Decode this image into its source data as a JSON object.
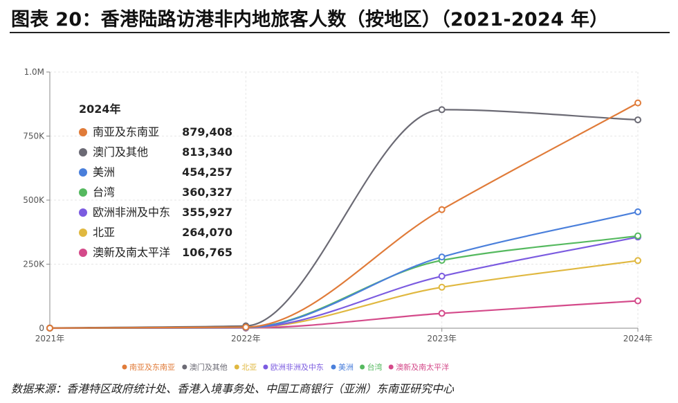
{
  "title": "图表 20：香港陆路访港非内地旅客人数（按地区）（2021-2024 年）",
  "source": "数据来源：香港特区政府统计处、香港入境事务处、中国工商银行（亚洲）东南亚研究中心",
  "chart_data": {
    "type": "line",
    "title": "图表 20：香港陆路访港非内地旅客人数（按地区）（2021-2024 年）",
    "categories": [
      "2021年",
      "2022年",
      "2023年",
      "2024年"
    ],
    "ylim": [
      0,
      1000000
    ],
    "yticks": [
      0,
      250000,
      500000,
      750000,
      1000000
    ],
    "ytick_labels": [
      "0",
      "250K",
      "500K",
      "750K",
      "1.0M"
    ],
    "legend_title": "2024年",
    "series": [
      {
        "name": "南亚及东南亚",
        "color": "#e07b39",
        "values": [
          500,
          4000,
          463000,
          879408
        ],
        "label_2024": "879,408"
      },
      {
        "name": "澳门及其他",
        "color": "#6b6a74",
        "values": [
          1000,
          9000,
          853000,
          813340
        ],
        "label_2024": "813,340"
      },
      {
        "name": "美洲",
        "color": "#4a7fdb",
        "values": [
          300,
          2500,
          278000,
          454257
        ],
        "label_2024": "454,257"
      },
      {
        "name": "台湾",
        "color": "#55b95f",
        "values": [
          300,
          3000,
          265000,
          360327
        ],
        "label_2024": "360,327"
      },
      {
        "name": "欧洲非洲及中东",
        "color": "#7b5be0",
        "values": [
          300,
          2000,
          203000,
          355927
        ],
        "label_2024": "355,927"
      },
      {
        "name": "北亚",
        "color": "#e0b840",
        "values": [
          200,
          1500,
          160000,
          264070
        ],
        "label_2024": "264,070"
      },
      {
        "name": "澳新及南太平洋",
        "color": "#d44a8a",
        "values": [
          100,
          800,
          58000,
          106765
        ],
        "label_2024": "106,765"
      }
    ],
    "bottom_legend_order": [
      "南亚及东南亚",
      "澳门及其他",
      "北亚",
      "欧洲非洲及中东",
      "美洲",
      "台湾",
      "澳新及南太平洋"
    ]
  }
}
